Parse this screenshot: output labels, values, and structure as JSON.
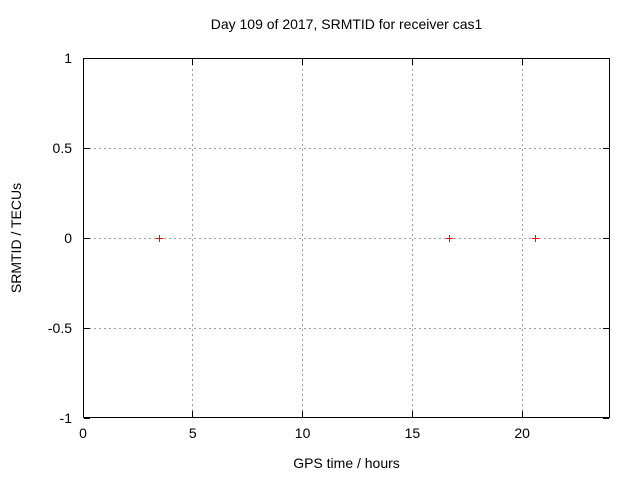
{
  "chart_data": {
    "type": "scatter",
    "title": "Day 109 of 2017, SRMTID for receiver cas1",
    "xlabel": "GPS time / hours",
    "ylabel": "SRMTID / TECUs",
    "xlim": [
      0,
      24
    ],
    "ylim": [
      -1,
      1
    ],
    "x_ticks": [
      0,
      5,
      10,
      15,
      20
    ],
    "y_ticks": [
      -1,
      -0.5,
      0,
      0.5,
      1
    ],
    "grid": true,
    "legend_position": "none",
    "marker": "plus",
    "marker_color": "#ff0000",
    "grid_color": "#a0a0a0",
    "axis_color": "#000000",
    "background_color": "#ffffff",
    "series": [
      {
        "name": "SRMTID",
        "points": [
          {
            "x": 3.5,
            "y": 0
          },
          {
            "x": 16.7,
            "y": 0
          },
          {
            "x": 20.6,
            "y": 0
          }
        ]
      }
    ]
  }
}
